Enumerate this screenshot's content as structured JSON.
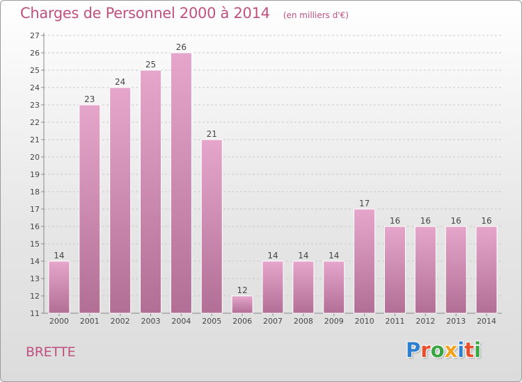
{
  "header": {
    "title": "Charges de Personnel 2000 à 2014",
    "subtitle": "(en milliers d'€)"
  },
  "footer": {
    "commune": "BRETTE",
    "brand": [
      "P",
      "r",
      "o",
      "x",
      "i",
      "t",
      "i"
    ],
    "brand_colors": [
      "#2f7fd0",
      "#e84d2c",
      "#3aa642",
      "#f4a11d",
      "#2f7fd0",
      "#e84d2c",
      "#3aa642"
    ]
  },
  "colors": {
    "bar_top": "#e6a6cc",
    "bar_bottom": "#b26f95",
    "accent": "#c0507f"
  },
  "chart_data": {
    "type": "bar",
    "categories": [
      "2000",
      "2001",
      "2002",
      "2003",
      "2004",
      "2005",
      "2006",
      "2007",
      "2008",
      "2009",
      "2010",
      "2011",
      "2012",
      "2013",
      "2014"
    ],
    "values": [
      14,
      23,
      24,
      25,
      26,
      21,
      12,
      14,
      14,
      14,
      17,
      16,
      16,
      16,
      16
    ],
    "ylim": [
      11,
      27
    ],
    "yticks": [
      11,
      12,
      13,
      14,
      15,
      16,
      17,
      18,
      19,
      20,
      21,
      22,
      23,
      24,
      25,
      26,
      27
    ],
    "grid": true,
    "data_labels": true
  }
}
